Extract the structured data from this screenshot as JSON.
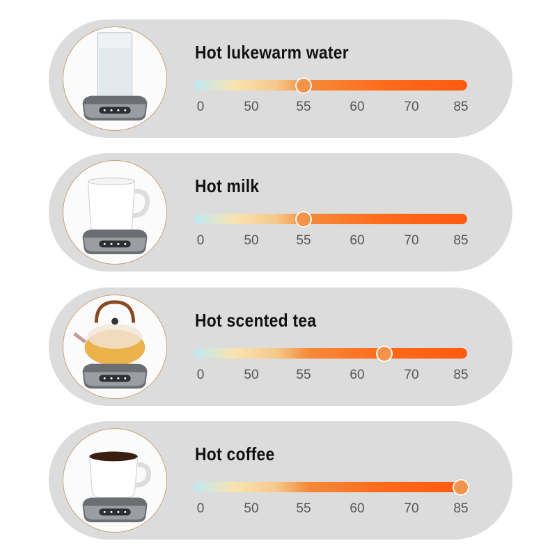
{
  "ticks": [
    "0",
    "50",
    "55",
    "60",
    "70",
    "85"
  ],
  "colors": {
    "card": "#dcdcdc",
    "knob": "#f4934a",
    "track_hot": "#ff5a10",
    "track_cold": "#bfe8f2"
  },
  "cards": [
    {
      "title": "Hot lukewarm water",
      "value": 55,
      "icon": "glass-of-water-on-warmer-icon"
    },
    {
      "title": "Hot milk",
      "value": 55,
      "icon": "milk-mug-on-warmer-icon"
    },
    {
      "title": "Hot scented tea",
      "value": 65,
      "icon": "glass-teapot-on-warmer-icon"
    },
    {
      "title": "Hot coffee",
      "value": 85,
      "icon": "coffee-cup-on-warmer-icon"
    }
  ]
}
